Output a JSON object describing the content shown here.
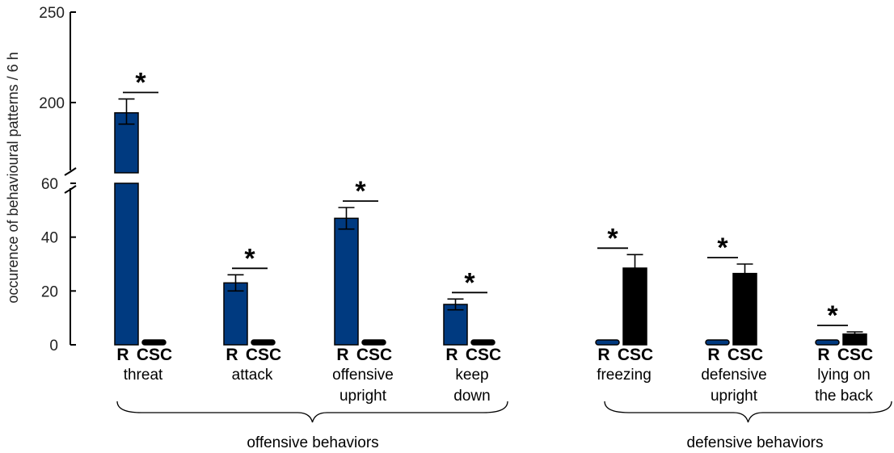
{
  "chart_data": {
    "type": "bar",
    "title": "",
    "xlabel": "",
    "ylabel": "occurence of behavioural patterns / 6 h",
    "broken_axis": true,
    "y_lower_ticks": [
      "0",
      "20",
      "40",
      "60"
    ],
    "y_upper_ticks": [
      "200",
      "250"
    ],
    "ylim_lower": [
      0,
      60
    ],
    "ylim_upper": [
      200,
      250
    ],
    "bar_labels": {
      "r": "R",
      "csc": "CSC"
    },
    "colors": {
      "R": "#003a80",
      "CSC": "#000000"
    },
    "significance_marker": "*",
    "categories": [
      {
        "label": [
          "threat"
        ],
        "group": 0,
        "R": 180,
        "R_err": 22,
        "CSC": 1,
        "sig": true
      },
      {
        "label": [
          "attack"
        ],
        "group": 0,
        "R": 23,
        "R_err": 3,
        "CSC": 1,
        "sig": true
      },
      {
        "label": [
          "offensive",
          "upright"
        ],
        "group": 0,
        "R": 47,
        "R_err": 4,
        "CSC": 1,
        "sig": true
      },
      {
        "label": [
          "keep",
          "down"
        ],
        "group": 0,
        "R": 15,
        "R_err": 2,
        "CSC": 1,
        "sig": true
      },
      {
        "label": [
          "freezing"
        ],
        "group": 1,
        "R": 1,
        "CSC": 28.5,
        "CSC_err": 5,
        "sig": true
      },
      {
        "label": [
          "defensive",
          "upright"
        ],
        "group": 1,
        "R": 1,
        "CSC": 26.5,
        "CSC_err": 3.5,
        "sig": true
      },
      {
        "label": [
          "lying on",
          "the back"
        ],
        "group": 1,
        "R": 1,
        "CSC": 4,
        "CSC_err": 0.8,
        "sig": true
      }
    ],
    "groups": [
      "offensive behaviors",
      "defensive behaviors"
    ]
  }
}
